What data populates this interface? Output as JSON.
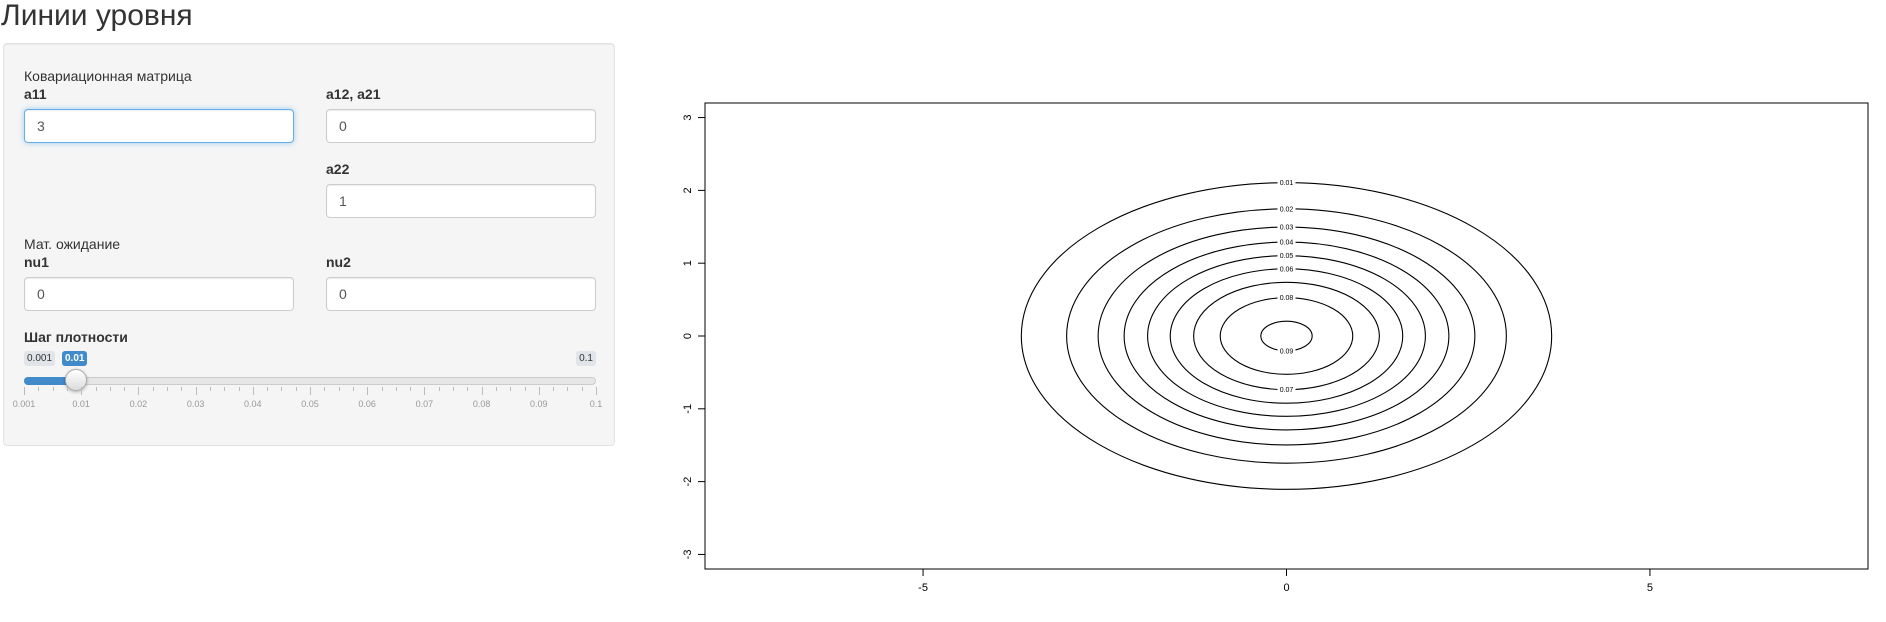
{
  "page": {
    "title": "Линии уровня"
  },
  "covariance": {
    "section_label": "Ковариационная матрица",
    "a11": {
      "label": "a11",
      "value": "3"
    },
    "a12": {
      "label": "a12, a21",
      "value": "0"
    },
    "a22": {
      "label": "a22",
      "value": "1"
    }
  },
  "mean": {
    "section_label": "Мат. ожидание",
    "nu1": {
      "label": "nu1",
      "value": "0"
    },
    "nu2": {
      "label": "nu2",
      "value": "0"
    }
  },
  "slider": {
    "label": "Шаг плотности",
    "min": 0.001,
    "max": 0.1,
    "value": 0.01,
    "min_label": "0.001",
    "max_label": "0.1",
    "value_label": "0.01",
    "tick_labels": [
      "0.001",
      "0.01",
      "0.02",
      "0.03",
      "0.04",
      "0.05",
      "0.06",
      "0.07",
      "0.08",
      "0.09",
      "0.1"
    ],
    "accent_color": "#428bca"
  },
  "chart_data": {
    "type": "contour",
    "xlim": [
      -8,
      8
    ],
    "ylim": [
      -3.2,
      3.2
    ],
    "x_ticks": [
      -5,
      0,
      5
    ],
    "x_tick_labels": [
      "-5",
      "0",
      "5"
    ],
    "y_ticks": [
      -3,
      -2,
      -1,
      0,
      1,
      2,
      3
    ],
    "y_tick_labels": [
      "-3",
      "-2",
      "-1",
      "0",
      "1",
      "2",
      "3"
    ],
    "center": [
      0,
      0
    ],
    "covariance": [
      [
        3,
        0
      ],
      [
        0,
        1
      ]
    ],
    "levels": [
      0.01,
      0.02,
      0.03,
      0.04,
      0.05,
      0.06,
      0.07,
      0.08,
      0.09
    ],
    "level_labels": [
      "0.01",
      "0.02",
      "0.03",
      "0.04",
      "0.05",
      "0.06",
      "0.07",
      "0.08",
      "0.09"
    ],
    "line_color": "#000000"
  }
}
